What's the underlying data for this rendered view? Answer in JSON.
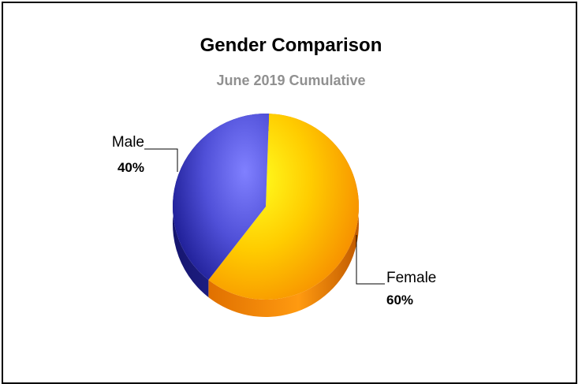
{
  "chart_data": {
    "type": "pie",
    "title": "Gender Comparison",
    "subtitle": "June 2019 Cumulative",
    "slices": [
      {
        "label": "Female",
        "value": 60,
        "display": "60%",
        "color": "#f5a300"
      },
      {
        "label": "Male",
        "value": 40,
        "display": "40%",
        "color": "#3a3ab8"
      }
    ]
  }
}
